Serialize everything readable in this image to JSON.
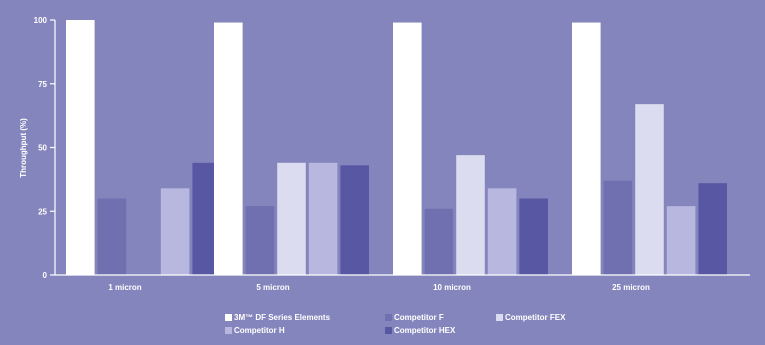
{
  "chart_data": {
    "type": "bar",
    "ylabel": "Throughput (%)",
    "ylim": [
      0,
      100
    ],
    "yticks": [
      "0",
      "25",
      "50",
      "75",
      "100"
    ],
    "grid": false,
    "legend_position": "bottom",
    "categories": [
      "1 micron",
      "5 micron",
      "10 micron",
      "25 micron"
    ],
    "series": [
      {
        "name": "3M™ DF Series Elements",
        "color": "#ffffff",
        "values": [
          100,
          99,
          99,
          99
        ]
      },
      {
        "name": "Competitor F",
        "color": "#7070b0",
        "values": [
          30,
          27,
          26,
          37
        ]
      },
      {
        "name": "Competitor H",
        "color": "#b7b7df",
        "values": [
          34,
          44,
          34,
          27
        ]
      },
      {
        "name": "Competitor FEX",
        "color": "#dcdcf0",
        "values": [
          null,
          44,
          47,
          67
        ]
      },
      {
        "name": "Competitor HEX",
        "color": "#5757a3",
        "values": [
          44,
          43,
          30,
          36
        ]
      }
    ]
  }
}
